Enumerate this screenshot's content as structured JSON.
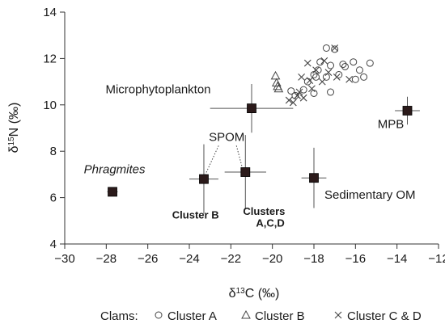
{
  "chart_data": {
    "type": "scatter",
    "title": "",
    "xlabel_parts": {
      "prefix": "δ",
      "sup": "13",
      "suffix": "C (‰)"
    },
    "ylabel_parts": {
      "prefix": "δ",
      "sup": "15",
      "suffix": "N (‰)"
    },
    "xlim": [
      -30,
      -12
    ],
    "ylim": [
      4,
      14
    ],
    "xticks": [
      -30,
      -28,
      -26,
      -24,
      -22,
      -20,
      -18,
      -16,
      -14,
      -12
    ],
    "yticks": [
      4,
      6,
      8,
      10,
      12,
      14
    ],
    "grid": false,
    "legend": {
      "placement": "bottom",
      "title": "Clams:",
      "entries": [
        {
          "name": "Cluster A",
          "marker": "circle"
        },
        {
          "name": "Cluster B",
          "marker": "triangle"
        },
        {
          "name": "Cluster C & D",
          "marker": "x"
        }
      ]
    },
    "sources": [
      {
        "name": "Microphytoplankton",
        "x": -21.0,
        "y": 9.85,
        "xerr": 2.0,
        "yerr": 1.05
      },
      {
        "name": "MPB",
        "x": -13.5,
        "y": 9.75,
        "xerr": 0.6,
        "yerr": 0.6
      },
      {
        "name": "SPOM Cluster B",
        "x": -23.3,
        "y": 6.8,
        "xerr": 0.7,
        "yerr": 1.5
      },
      {
        "name": "SPOM Clusters A,C,D",
        "x": -21.3,
        "y": 7.1,
        "xerr": 1.0,
        "yerr": 1.6
      },
      {
        "name": "Sedimentary OM",
        "x": -18.0,
        "y": 6.85,
        "xerr": 0.6,
        "yerr": 1.3
      },
      {
        "name": "Phragmites",
        "x": -27.7,
        "y": 6.25,
        "xerr": 0.25,
        "yerr": 0.1
      }
    ],
    "series": [
      {
        "name": "Cluster A",
        "marker": "circle",
        "points": [
          {
            "x": -17.4,
            "y": 12.45
          },
          {
            "x": -17.0,
            "y": 12.4
          },
          {
            "x": -17.7,
            "y": 11.85
          },
          {
            "x": -17.2,
            "y": 11.7
          },
          {
            "x": -16.6,
            "y": 11.75
          },
          {
            "x": -16.1,
            "y": 11.85
          },
          {
            "x": -15.3,
            "y": 11.8
          },
          {
            "x": -15.8,
            "y": 11.5
          },
          {
            "x": -16.5,
            "y": 11.65
          },
          {
            "x": -17.8,
            "y": 11.5
          },
          {
            "x": -18.0,
            "y": 11.3
          },
          {
            "x": -17.4,
            "y": 11.2
          },
          {
            "x": -16.8,
            "y": 11.3
          },
          {
            "x": -16.0,
            "y": 11.1
          },
          {
            "x": -15.6,
            "y": 11.2
          },
          {
            "x": -18.3,
            "y": 11.0
          },
          {
            "x": -17.9,
            "y": 11.2
          },
          {
            "x": -18.5,
            "y": 10.65
          },
          {
            "x": -18.0,
            "y": 10.5
          },
          {
            "x": -17.2,
            "y": 10.55
          },
          {
            "x": -18.9,
            "y": 10.4
          },
          {
            "x": -19.1,
            "y": 10.6
          }
        ]
      },
      {
        "name": "Cluster B",
        "marker": "triangle",
        "points": [
          {
            "x": -19.85,
            "y": 11.25
          },
          {
            "x": -19.8,
            "y": 10.95
          },
          {
            "x": -19.75,
            "y": 10.8
          },
          {
            "x": -19.7,
            "y": 10.7
          }
        ]
      },
      {
        "name": "Cluster C & D",
        "marker": "x",
        "points": [
          {
            "x": -17.0,
            "y": 12.45
          },
          {
            "x": -18.3,
            "y": 11.8
          },
          {
            "x": -17.9,
            "y": 11.5
          },
          {
            "x": -17.5,
            "y": 11.9
          },
          {
            "x": -16.3,
            "y": 11.1
          },
          {
            "x": -16.9,
            "y": 11.2
          },
          {
            "x": -17.3,
            "y": 11.4
          },
          {
            "x": -18.6,
            "y": 11.2
          },
          {
            "x": -18.2,
            "y": 11.05
          },
          {
            "x": -17.6,
            "y": 11.0
          },
          {
            "x": -18.1,
            "y": 10.7
          },
          {
            "x": -18.8,
            "y": 10.4
          },
          {
            "x": -19.2,
            "y": 10.2
          },
          {
            "x": -18.5,
            "y": 10.3
          },
          {
            "x": -19.0,
            "y": 10.1
          },
          {
            "x": -18.7,
            "y": 10.55
          }
        ]
      }
    ],
    "annotations": [
      {
        "text": "Microphytoplankton",
        "style": "normal",
        "x": -25.5,
        "y": 10.5
      },
      {
        "text": "MPB",
        "style": "normal",
        "x": -14.3,
        "y": 9.0
      },
      {
        "text": "SPOM",
        "style": "normal",
        "x": -22.2,
        "y": 8.45
      },
      {
        "text": "Phragmites",
        "style": "italic",
        "x": -27.6,
        "y": 7.05
      },
      {
        "text": "Cluster B",
        "style": "bold",
        "x": -23.7,
        "y": 5.1
      },
      {
        "text": "Clusters",
        "style": "bold",
        "x": -20.4,
        "y": 5.25
      },
      {
        "text": "A,C,D",
        "style": "bold",
        "x": -20.1,
        "y": 4.75
      },
      {
        "text": "Sedimentary OM",
        "style": "normal",
        "x": -15.3,
        "y": 5.95
      }
    ]
  }
}
